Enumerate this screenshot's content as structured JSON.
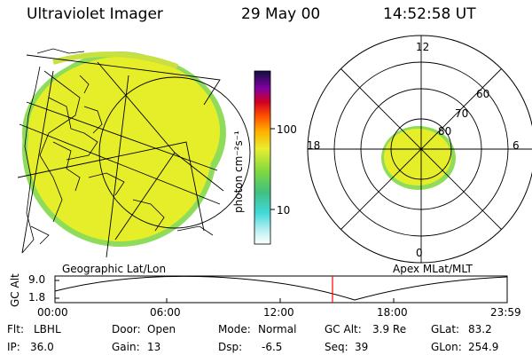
{
  "header": {
    "instrument": "Ultraviolet Imager",
    "date": "29 May 00",
    "time": "14:52:58 UT"
  },
  "colorbar": {
    "unit_label": "photon cm⁻²s⁻¹",
    "ticks": [
      "100",
      "10"
    ]
  },
  "polar_plot": {
    "mlt_labels": [
      "12",
      "18",
      "6",
      "0"
    ],
    "lat_labels": [
      "60",
      "70",
      "80"
    ]
  },
  "panel_labels": {
    "left": "Geographic Lat/Lon",
    "right": "Apex MLat/MLT"
  },
  "altitude_plot": {
    "ylabel": "GC Alt",
    "yticks": [
      "9.0",
      "1.8"
    ],
    "xticks": [
      "00:00",
      "06:00",
      "12:00",
      "18:00",
      "23:59"
    ]
  },
  "status": {
    "filter_key": "Flt:",
    "filter_val": "LBHL",
    "ip_key": "IP:",
    "ip_val": "36.0",
    "door_key": "Door:",
    "door_val": "Open",
    "gain_key": "Gain:",
    "gain_val": "13",
    "mode_key": "Mode:",
    "mode_val": "Normal",
    "dsp_key": "Dsp:",
    "dsp_val": "-6.5",
    "gcalt_key": "GC Alt:",
    "gcalt_val": "3.9 Re",
    "seq_key": "Seq:",
    "seq_val": "39",
    "glat_key": "GLat:",
    "glat_val": "83.2",
    "glon_key": "GLon:",
    "glon_val": "254.9"
  },
  "colors": {
    "aurora_fill": "#e6ee2a",
    "aurora_edge": "#8fdc5a",
    "marker": "#ff0000"
  }
}
